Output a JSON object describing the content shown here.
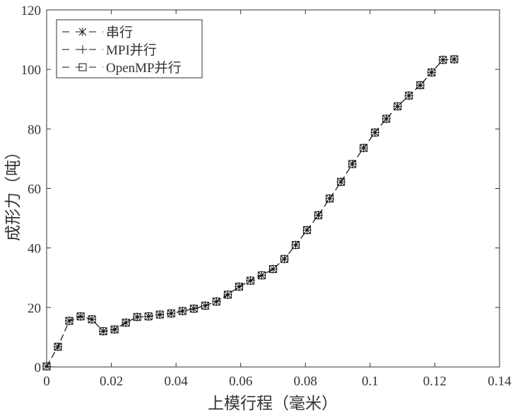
{
  "chart_data": {
    "type": "line",
    "title": "",
    "xlabel": "上模行程（毫米）",
    "ylabel": "成形力（吨）",
    "xlim": [
      0,
      0.14
    ],
    "ylim": [
      0,
      120
    ],
    "xticks": [
      0,
      0.02,
      0.04,
      0.06,
      0.08,
      0.1,
      0.12,
      0.14
    ],
    "yticks": [
      0,
      20,
      40,
      60,
      80,
      100,
      120
    ],
    "xtick_labels": [
      "0",
      "0.02",
      "0.04",
      "0.06",
      "0.08",
      "0.1",
      "0.12",
      "0.14"
    ],
    "ytick_labels": [
      "0",
      "20",
      "40",
      "60",
      "80",
      "100",
      "120"
    ],
    "grid": false,
    "legend_position": "top-left",
    "series": [
      {
        "name": "串行",
        "marker": "asterisk",
        "line": "dashed",
        "color": "#111111",
        "x": [
          0,
          0.0035,
          0.007,
          0.0105,
          0.014,
          0.0175,
          0.021,
          0.0245,
          0.028,
          0.0315,
          0.035,
          0.0385,
          0.042,
          0.0455,
          0.049,
          0.0525,
          0.056,
          0.0595,
          0.063,
          0.0665,
          0.07,
          0.0735,
          0.077,
          0.0805,
          0.084,
          0.0875,
          0.091,
          0.0945,
          0.098,
          0.1015,
          0.105,
          0.1085,
          0.112,
          0.1155,
          0.119,
          0.1225,
          0.126
        ],
        "y": [
          0.2,
          6.8,
          15.5,
          17.0,
          16.0,
          12.0,
          12.6,
          14.9,
          16.8,
          17.0,
          17.6,
          18.0,
          18.8,
          19.6,
          20.6,
          22.0,
          24.3,
          27.0,
          29.0,
          30.8,
          32.9,
          36.3,
          41.0,
          46.0,
          51.0,
          56.6,
          62.2,
          68.2,
          73.6,
          78.8,
          83.4,
          87.6,
          91.2,
          94.7,
          99.0,
          103.2,
          103.4
        ]
      },
      {
        "name": "MPI并行",
        "marker": "plus",
        "line": "dashed",
        "color": "#111111",
        "x": [
          0,
          0.0035,
          0.007,
          0.0105,
          0.014,
          0.0175,
          0.021,
          0.0245,
          0.028,
          0.0315,
          0.035,
          0.0385,
          0.042,
          0.0455,
          0.049,
          0.0525,
          0.056,
          0.0595,
          0.063,
          0.0665,
          0.07,
          0.0735,
          0.077,
          0.0805,
          0.084,
          0.0875,
          0.091,
          0.0945,
          0.098,
          0.1015,
          0.105,
          0.1085,
          0.112,
          0.1155,
          0.119,
          0.1225,
          0.126
        ],
        "y": [
          0.2,
          6.8,
          15.5,
          17.0,
          16.0,
          12.0,
          12.6,
          14.9,
          16.8,
          17.0,
          17.6,
          18.0,
          18.8,
          19.6,
          20.6,
          22.0,
          24.3,
          27.0,
          29.0,
          30.8,
          32.9,
          36.3,
          41.0,
          46.0,
          51.0,
          56.6,
          62.2,
          68.2,
          73.6,
          78.8,
          83.4,
          87.6,
          91.2,
          94.7,
          99.0,
          103.2,
          103.4
        ]
      },
      {
        "name": "OpenMP并行",
        "marker": "square",
        "line": "dashed",
        "color": "#111111",
        "x": [
          0,
          0.0035,
          0.007,
          0.0105,
          0.014,
          0.0175,
          0.021,
          0.0245,
          0.028,
          0.0315,
          0.035,
          0.0385,
          0.042,
          0.0455,
          0.049,
          0.0525,
          0.056,
          0.0595,
          0.063,
          0.0665,
          0.07,
          0.0735,
          0.077,
          0.0805,
          0.084,
          0.0875,
          0.091,
          0.0945,
          0.098,
          0.1015,
          0.105,
          0.1085,
          0.112,
          0.1155,
          0.119,
          0.1225,
          0.126
        ],
        "y": [
          0.2,
          6.8,
          15.5,
          17.0,
          16.0,
          12.0,
          12.6,
          14.9,
          16.8,
          17.0,
          17.6,
          18.0,
          18.8,
          19.6,
          20.6,
          22.0,
          24.3,
          27.0,
          29.0,
          30.8,
          32.9,
          36.3,
          41.0,
          46.0,
          51.0,
          56.6,
          62.2,
          68.2,
          73.6,
          78.8,
          83.4,
          87.6,
          91.2,
          94.7,
          99.0,
          103.2,
          103.4
        ]
      }
    ]
  }
}
